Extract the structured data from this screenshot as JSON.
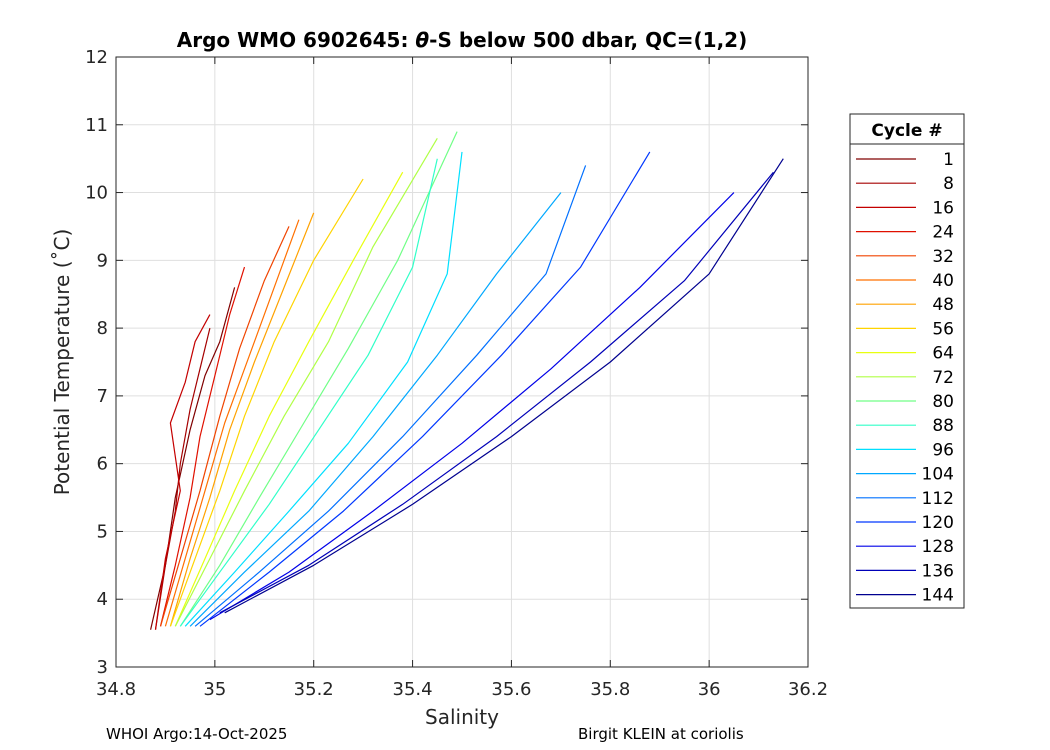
{
  "chart_data": {
    "type": "line",
    "title_prefix": "Argo WMO 6902645: ",
    "title_symbol": "θ",
    "title_suffix": "-S below 500 dbar,  QC=(1,2)",
    "xlabel": "Salinity",
    "ylabel": "Potential Temperature (˚C)",
    "xlim": [
      34.8,
      36.2
    ],
    "ylim": [
      3,
      12
    ],
    "xticks": [
      "34.8",
      "35",
      "35.2",
      "35.4",
      "35.6",
      "35.8",
      "36",
      "36.2"
    ],
    "yticks": [
      "3",
      "4",
      "5",
      "6",
      "7",
      "8",
      "9",
      "10",
      "11",
      "12"
    ],
    "grid": true,
    "legend": {
      "title": "Cycle #",
      "placement": "right-outside",
      "entries": [
        "1",
        "8",
        "16",
        "24",
        "32",
        "40",
        "48",
        "56",
        "64",
        "72",
        "80",
        "88",
        "96",
        "104",
        "112",
        "120",
        "128",
        "136",
        "144"
      ]
    },
    "colormap": "jet",
    "colors": [
      "#800000",
      "#a50000",
      "#c40000",
      "#e01000",
      "#f04400",
      "#ff7000",
      "#ffa200",
      "#ffd400",
      "#e8ff10",
      "#b0ff46",
      "#70ff86",
      "#30ffc8",
      "#00e0ff",
      "#00a8ff",
      "#0070ff",
      "#0038ff",
      "#0000e8",
      "#0000b8",
      "#00008f"
    ],
    "series": [
      {
        "name": "1",
        "x": [
          34.87,
          34.9,
          34.92,
          34.95,
          34.98,
          35.01,
          35.04
        ],
        "y": [
          3.55,
          4.5,
          5.5,
          6.5,
          7.3,
          7.8,
          8.6
        ]
      },
      {
        "name": "8",
        "x": [
          34.88,
          34.9,
          34.92,
          34.93,
          34.95,
          34.97,
          34.99
        ],
        "y": [
          3.55,
          4.5,
          5.3,
          6.0,
          6.8,
          7.4,
          8.0
        ]
      },
      {
        "name": "16",
        "x": [
          34.88,
          34.9,
          34.93,
          34.91,
          34.94,
          34.96,
          34.99
        ],
        "y": [
          3.55,
          4.6,
          5.6,
          6.6,
          7.2,
          7.8,
          8.2
        ]
      },
      {
        "name": "24",
        "x": [
          34.89,
          34.92,
          34.95,
          34.97,
          35.0,
          35.03,
          35.06
        ],
        "y": [
          3.6,
          4.5,
          5.5,
          6.4,
          7.3,
          8.2,
          8.9
        ]
      },
      {
        "name": "32",
        "x": [
          34.89,
          34.93,
          34.97,
          35.01,
          35.05,
          35.1,
          35.15
        ],
        "y": [
          3.6,
          4.6,
          5.6,
          6.7,
          7.7,
          8.7,
          9.5
        ]
      },
      {
        "name": "40",
        "x": [
          34.9,
          34.94,
          34.98,
          35.02,
          35.07,
          35.12,
          35.17
        ],
        "y": [
          3.6,
          4.6,
          5.6,
          6.6,
          7.6,
          8.6,
          9.6
        ]
      },
      {
        "name": "48",
        "x": [
          34.91,
          34.95,
          34.99,
          35.03,
          35.08,
          35.14,
          35.2
        ],
        "y": [
          3.6,
          4.6,
          5.5,
          6.5,
          7.5,
          8.6,
          9.7
        ]
      },
      {
        "name": "56",
        "x": [
          34.91,
          34.96,
          35.01,
          35.06,
          35.12,
          35.2,
          35.3
        ],
        "y": [
          3.6,
          4.6,
          5.6,
          6.7,
          7.8,
          9.0,
          10.2
        ]
      },
      {
        "name": "64",
        "x": [
          34.92,
          34.98,
          35.04,
          35.11,
          35.19,
          35.28,
          35.38
        ],
        "y": [
          3.6,
          4.6,
          5.6,
          6.7,
          7.8,
          9.0,
          10.3
        ]
      },
      {
        "name": "72",
        "x": [
          34.92,
          34.99,
          35.06,
          35.14,
          35.23,
          35.32,
          35.45
        ],
        "y": [
          3.6,
          4.6,
          5.6,
          6.7,
          7.8,
          9.2,
          10.8
        ]
      },
      {
        "name": "80",
        "x": [
          34.93,
          35.01,
          35.09,
          35.18,
          35.27,
          35.37,
          35.49
        ],
        "y": [
          3.6,
          4.5,
          5.5,
          6.6,
          7.7,
          9.0,
          10.9
        ]
      },
      {
        "name": "88",
        "x": [
          34.93,
          35.02,
          35.11,
          35.21,
          35.31,
          35.4,
          35.45
        ],
        "y": [
          3.6,
          4.5,
          5.4,
          6.5,
          7.6,
          8.9,
          10.5
        ]
      },
      {
        "name": "96",
        "x": [
          34.94,
          35.04,
          35.15,
          35.27,
          35.39,
          35.47,
          35.5
        ],
        "y": [
          3.6,
          4.4,
          5.3,
          6.3,
          7.5,
          8.8,
          10.6
        ]
      },
      {
        "name": "104",
        "x": [
          34.95,
          35.06,
          35.19,
          35.32,
          35.45,
          35.57,
          35.7
        ],
        "y": [
          3.6,
          4.4,
          5.3,
          6.4,
          7.6,
          8.8,
          10.0
        ]
      },
      {
        "name": "112",
        "x": [
          34.96,
          35.09,
          35.23,
          35.38,
          35.53,
          35.67,
          35.75
        ],
        "y": [
          3.6,
          4.4,
          5.3,
          6.4,
          7.6,
          8.8,
          10.4
        ]
      },
      {
        "name": "120",
        "x": [
          34.97,
          35.11,
          35.26,
          35.42,
          35.58,
          35.74,
          35.88
        ],
        "y": [
          3.6,
          4.4,
          5.3,
          6.4,
          7.6,
          8.9,
          10.6
        ]
      },
      {
        "name": "128",
        "x": [
          34.99,
          35.15,
          35.32,
          35.5,
          35.68,
          35.86,
          36.05
        ],
        "y": [
          3.7,
          4.4,
          5.3,
          6.3,
          7.4,
          8.6,
          10.0
        ]
      },
      {
        "name": "136",
        "x": [
          35.01,
          35.19,
          35.38,
          35.57,
          35.76,
          35.95,
          36.13
        ],
        "y": [
          3.8,
          4.5,
          5.4,
          6.4,
          7.5,
          8.7,
          10.3
        ]
      },
      {
        "name": "144",
        "x": [
          35.02,
          35.2,
          35.4,
          35.6,
          35.8,
          36.0,
          36.15
        ],
        "y": [
          3.8,
          4.5,
          5.4,
          6.4,
          7.5,
          8.8,
          10.5
        ]
      }
    ]
  },
  "footer": {
    "left": "WHOI Argo:14-Oct-2025",
    "right": "Birgit KLEIN at coriolis"
  }
}
